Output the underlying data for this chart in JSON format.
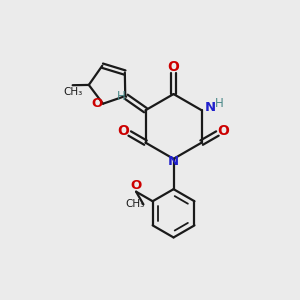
{
  "background_color": "#ebebeb",
  "bond_color": "#1a1a1a",
  "nitrogen_color": "#2020cc",
  "oxygen_color": "#cc0000",
  "hydrogen_color": "#4a8888",
  "figsize": [
    3.0,
    3.0
  ],
  "dpi": 100,
  "xlim": [
    0,
    10
  ],
  "ylim": [
    0,
    10
  ]
}
